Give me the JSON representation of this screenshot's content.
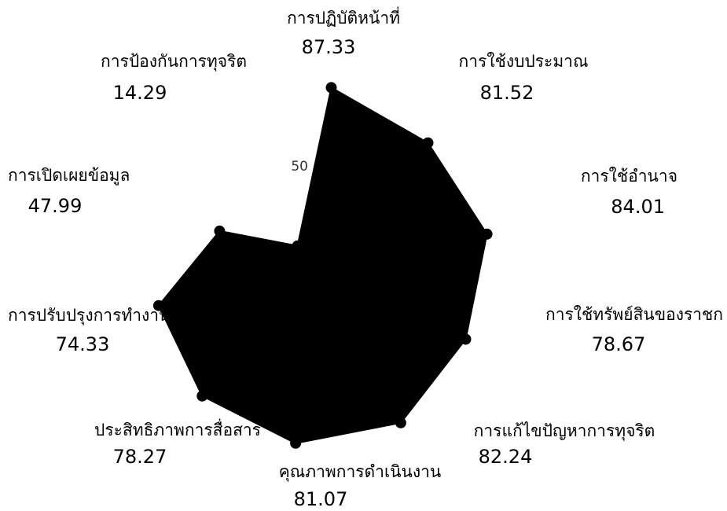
{
  "chart_data": {
    "type": "radar",
    "title": "",
    "rmax": 100,
    "ticks": [
      {
        "value": 50,
        "label": "50"
      }
    ],
    "grid": false,
    "legend": "none",
    "fill_color": "#000000",
    "categories": [
      "การปฏิบัติหน้าที่",
      "การใช้งบประมาณ",
      "การใช้อำนาจ",
      "การใช้ทรัพย์สินของราชก",
      "การแก้ไขปัญหาการทุจริต",
      "คุณภาพการดำเนินงาน",
      "ประสิทธิภาพการสื่อสาร",
      "การปรับปรุงการทำงาน",
      "การเปิดเผยข้อมูล",
      "การป้องกันการทุจริต"
    ],
    "value_labels": [
      "87.33",
      "81.52",
      "84.01",
      "78.67",
      "82.24",
      "81.07",
      "78.27",
      "74.33",
      "47.99",
      "14.29"
    ],
    "series": [
      {
        "values": [
          87.33,
          81.52,
          84.01,
          78.67,
          82.24,
          81.07,
          78.27,
          74.33,
          47.99,
          14.29
        ]
      }
    ]
  }
}
